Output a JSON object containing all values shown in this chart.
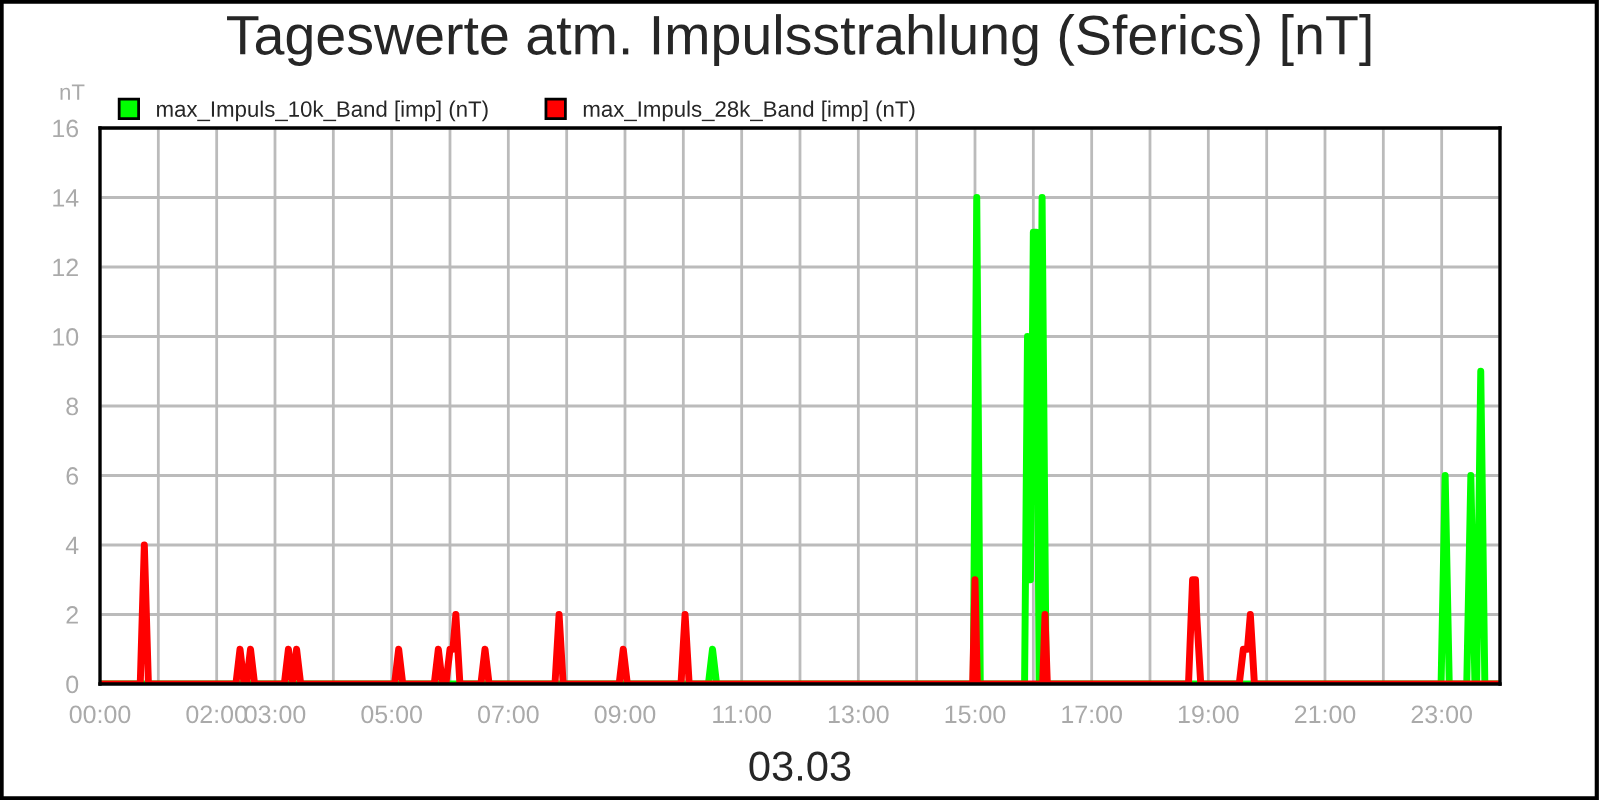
{
  "chart_data": {
    "type": "line",
    "title": "Tageswerte atm. Impulsstrahlung (Sferics) [nT]",
    "xlabel": "03.03",
    "ylabel": "nT",
    "xlim": [
      0,
      24
    ],
    "ylim": [
      0,
      16
    ],
    "xticks": [
      {
        "value": 0,
        "label": "00:00"
      },
      {
        "value": 1,
        "label": null
      },
      {
        "value": 2,
        "label": "02:00"
      },
      {
        "value": 3,
        "label": "03:00"
      },
      {
        "value": 4,
        "label": null
      },
      {
        "value": 5,
        "label": "05:00"
      },
      {
        "value": 6,
        "label": null
      },
      {
        "value": 7,
        "label": "07:00"
      },
      {
        "value": 8,
        "label": null
      },
      {
        "value": 9,
        "label": "09:00"
      },
      {
        "value": 10,
        "label": null
      },
      {
        "value": 11,
        "label": "11:00"
      },
      {
        "value": 12,
        "label": null
      },
      {
        "value": 13,
        "label": "13:00"
      },
      {
        "value": 14,
        "label": null
      },
      {
        "value": 15,
        "label": "15:00"
      },
      {
        "value": 16,
        "label": null
      },
      {
        "value": 17,
        "label": "17:00"
      },
      {
        "value": 18,
        "label": null
      },
      {
        "value": 19,
        "label": "19:00"
      },
      {
        "value": 20,
        "label": null
      },
      {
        "value": 21,
        "label": "21:00"
      },
      {
        "value": 22,
        "label": null
      },
      {
        "value": 23,
        "label": "23:00"
      },
      {
        "value": 24,
        "label": null
      }
    ],
    "yticks": [
      0,
      2,
      4,
      6,
      8,
      10,
      12,
      14,
      16
    ],
    "grid": true,
    "legend": "top left",
    "marker": "none",
    "line_style": "solid",
    "series": [
      {
        "name": "max_Impuls_10k_Band [imp] (nT)",
        "color": "#00ff00",
        "x": [
          0,
          10.43,
          10.5,
          10.57,
          14.97,
          15.03,
          15.09,
          15.85,
          15.9,
          15.95,
          16.0,
          16.05,
          16.1,
          16.15,
          16.22,
          22.99,
          23.06,
          23.13,
          23.43,
          23.5,
          23.57,
          23.6,
          23.67,
          23.74,
          24
        ],
        "values": [
          0,
          0,
          1,
          0,
          0,
          14,
          0,
          0,
          10,
          3,
          13,
          13,
          0,
          14,
          0,
          0,
          6,
          0,
          0,
          6,
          0,
          0,
          9,
          0,
          0
        ]
      },
      {
        "name": "max_Impuls_28k_Band [imp] (nT)",
        "color": "#ff0000",
        "x": [
          0,
          0.69,
          0.76,
          0.83,
          2.33,
          2.4,
          2.47,
          2.51,
          2.58,
          2.65,
          3.16,
          3.23,
          3.3,
          3.37,
          3.44,
          5.05,
          5.12,
          5.19,
          5.73,
          5.8,
          5.87,
          5.93,
          6.0,
          6.05,
          6.1,
          6.17,
          6.53,
          6.6,
          6.67,
          7.8,
          7.87,
          7.94,
          8.9,
          8.97,
          9.04,
          9.96,
          10.03,
          10.1,
          14.96,
          15.0,
          15.04,
          16.16,
          16.2,
          16.24,
          18.66,
          18.73,
          18.78,
          18.8,
          18.87,
          19.53,
          19.6,
          19.67,
          19.72,
          19.79,
          24
        ],
        "values": [
          0,
          0,
          4,
          0,
          0,
          1,
          0,
          0,
          1,
          0,
          0,
          1,
          0,
          1,
          0,
          0,
          1,
          0,
          0,
          1,
          0,
          0,
          1,
          1,
          2,
          0,
          0,
          1,
          0,
          0,
          2,
          0,
          0,
          1,
          0,
          0,
          2,
          0,
          0,
          3,
          0,
          0,
          2,
          0,
          0,
          3,
          3,
          2,
          0,
          0,
          1,
          1,
          2,
          0,
          0
        ]
      }
    ]
  }
}
